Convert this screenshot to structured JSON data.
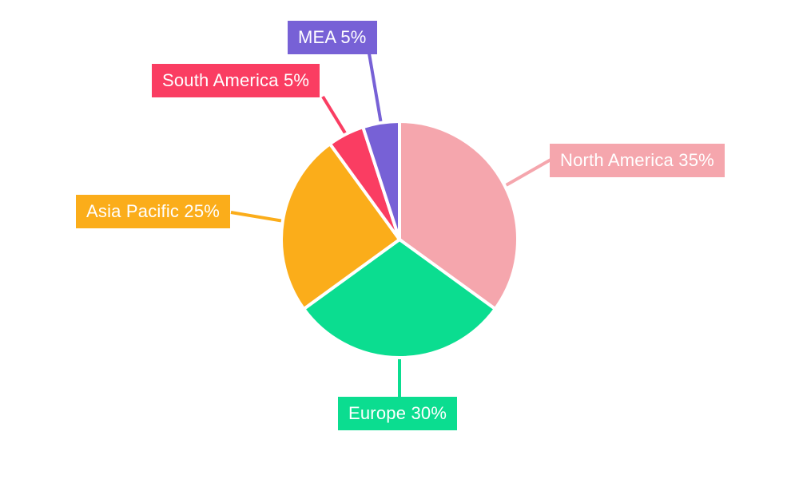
{
  "chart_data": {
    "type": "pie",
    "title": "",
    "legend_position": "none",
    "background": "#ffffff",
    "start_angle_deg": 0,
    "direction": "clockwise",
    "unit": "%",
    "categories": [
      "North America",
      "Europe",
      "Asia Pacific",
      "South America",
      "MEA"
    ],
    "values": [
      35,
      30,
      25,
      5,
      5
    ],
    "slices": [
      {
        "label": "North America",
        "value": 35,
        "display": "North America 35%",
        "color": "#f5a6ad"
      },
      {
        "label": "Europe",
        "value": 30,
        "display": "Europe 30%",
        "color": "#0bdd90"
      },
      {
        "label": "Asia Pacific",
        "value": 25,
        "display": "Asia Pacific 25%",
        "color": "#fbad1a"
      },
      {
        "label": "South America",
        "value": 5,
        "display": "South America 5%",
        "color": "#fa3d62"
      },
      {
        "label": "MEA",
        "value": 5,
        "display": "MEA 5%",
        "color": "#7761d6"
      }
    ]
  }
}
